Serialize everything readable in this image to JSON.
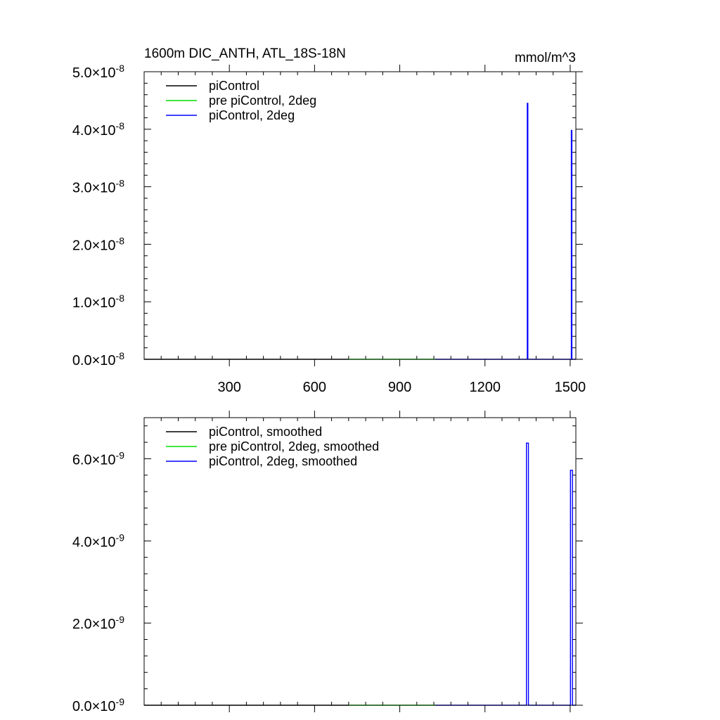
{
  "chart_data": [
    {
      "type": "line",
      "title": "1600m DIC_ANTH, ATL_18S-18N",
      "units": "mmol/m^3",
      "xlim": [
        0,
        1520
      ],
      "ylim": [
        0,
        5e-08
      ],
      "x_ticks": [
        300,
        600,
        900,
        1200,
        1500
      ],
      "x_tick_labels": [
        "300",
        "600",
        "900",
        "1200",
        "1500"
      ],
      "y_ticks": [
        {
          "mantissa": "0.0",
          "exponent": "-8",
          "value": 0
        },
        {
          "mantissa": "1.0",
          "exponent": "-8",
          "value": 1e-08
        },
        {
          "mantissa": "2.0",
          "exponent": "-8",
          "value": 2e-08
        },
        {
          "mantissa": "3.0",
          "exponent": "-8",
          "value": 3e-08
        },
        {
          "mantissa": "4.0",
          "exponent": "-8",
          "value": 4e-08
        },
        {
          "mantissa": "5.0",
          "exponent": "-8",
          "value": 5e-08
        }
      ],
      "grid": false,
      "legend_position": "top-left",
      "series": [
        {
          "name": "piControl",
          "color": "#000000",
          "x": [
            0,
            720
          ],
          "y": [
            0,
            0
          ]
        },
        {
          "name": "pre piControl, 2deg",
          "color": "#00dd00",
          "x": [
            720,
            1025
          ],
          "y": [
            0,
            0
          ]
        },
        {
          "name": "piControl, 2deg",
          "color": "#0000ff",
          "x": [
            1025,
            1349,
            1349,
            1351,
            1351,
            1504,
            1504,
            1506,
            1506,
            1520
          ],
          "y": [
            0,
            0,
            4.45e-08,
            4.45e-08,
            0,
            0,
            3.98e-08,
            3.98e-08,
            0,
            0
          ]
        }
      ]
    },
    {
      "type": "line",
      "title": "",
      "units": "",
      "xlim": [
        0,
        1520
      ],
      "ylim": [
        0,
        7e-09
      ],
      "x_ticks": [
        300,
        600,
        900,
        1200,
        1500
      ],
      "x_tick_labels": [],
      "y_ticks": [
        {
          "mantissa": "0.0",
          "exponent": "-9",
          "value": 0
        },
        {
          "mantissa": "2.0",
          "exponent": "-9",
          "value": 2e-09
        },
        {
          "mantissa": "4.0",
          "exponent": "-9",
          "value": 4e-09
        },
        {
          "mantissa": "6.0",
          "exponent": "-9",
          "value": 6e-09
        }
      ],
      "grid": false,
      "legend_position": "top-left",
      "series": [
        {
          "name": "piControl, smoothed",
          "color": "#000000",
          "x": [
            0,
            720
          ],
          "y": [
            0,
            0
          ]
        },
        {
          "name": "pre piControl, 2deg, smoothed",
          "color": "#00dd00",
          "x": [
            720,
            1025
          ],
          "y": [
            0,
            0
          ]
        },
        {
          "name": "piControl, 2deg, smoothed",
          "color": "#0000ff",
          "x": [
            1025,
            1346,
            1346,
            1353,
            1353,
            1501,
            1501,
            1508,
            1508,
            1520
          ],
          "y": [
            0,
            0,
            6.38e-09,
            6.38e-09,
            0,
            0,
            5.72e-09,
            5.72e-09,
            0,
            0
          ]
        }
      ]
    }
  ]
}
